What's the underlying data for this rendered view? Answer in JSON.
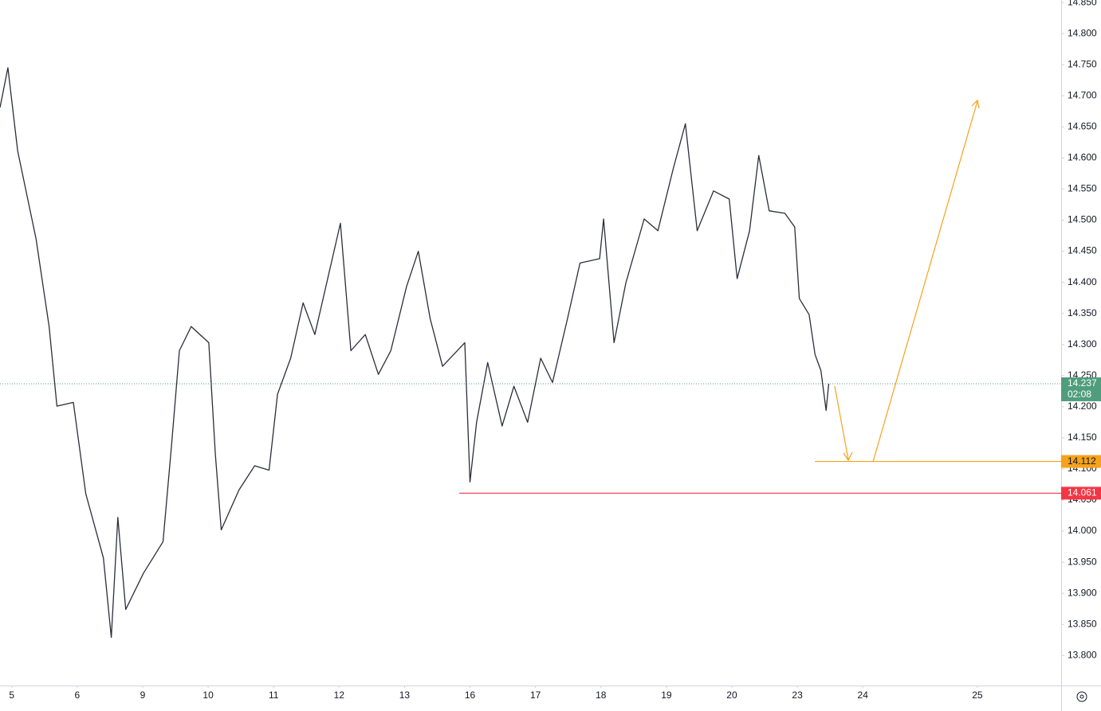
{
  "chart_data": {
    "type": "line",
    "x": [
      -0.18,
      -0.06,
      0.09,
      0.37,
      0.57,
      0.69,
      0.94,
      1.13,
      1.4,
      1.52,
      1.62,
      1.74,
      2.01,
      2.31,
      2.44,
      2.56,
      2.74,
      3.01,
      3.11,
      3.2,
      3.47,
      3.71,
      3.93,
      4.06,
      4.26,
      4.45,
      4.63,
      5.02,
      5.18,
      5.4,
      5.6,
      5.79,
      6.03,
      6.21,
      6.39,
      6.58,
      6.92,
      7.0,
      7.1,
      7.27,
      7.49,
      7.67,
      7.88,
      8.08,
      8.26,
      8.49,
      8.68,
      8.98,
      9.04,
      9.2,
      9.38,
      9.66,
      9.87,
      10.11,
      10.29,
      10.47,
      10.72,
      10.96,
      11.08,
      11.27,
      11.41,
      11.57,
      11.81,
      11.96,
      12.03,
      12.18,
      12.27,
      12.36,
      12.44,
      12.48
    ],
    "values": [
      14.681,
      14.745,
      14.611,
      14.47,
      14.329,
      14.201,
      14.207,
      14.06,
      13.957,
      13.829,
      14.022,
      13.874,
      13.932,
      13.983,
      14.137,
      14.29,
      14.329,
      14.303,
      14.124,
      14.002,
      14.066,
      14.105,
      14.098,
      14.22,
      14.278,
      14.367,
      14.316,
      14.495,
      14.29,
      14.316,
      14.252,
      14.29,
      14.393,
      14.45,
      14.342,
      14.265,
      14.303,
      14.079,
      14.175,
      14.271,
      14.169,
      14.233,
      14.175,
      14.278,
      14.239,
      14.342,
      14.431,
      14.438,
      14.502,
      14.303,
      14.399,
      14.502,
      14.483,
      14.585,
      14.655,
      14.483,
      14.547,
      14.534,
      14.406,
      14.483,
      14.604,
      14.515,
      14.511,
      14.489,
      14.374,
      14.348,
      14.284,
      14.258,
      14.194,
      14.237
    ],
    "color": "#2a2e39",
    "xlim": [
      -0.18,
      16.03
    ],
    "xticks": [
      {
        "value": 0,
        "label": "5"
      },
      {
        "value": 1,
        "label": "6"
      },
      {
        "value": 2,
        "label": "9"
      },
      {
        "value": 3,
        "label": "10"
      },
      {
        "value": 4,
        "label": "11"
      },
      {
        "value": 5,
        "label": "12"
      },
      {
        "value": 6,
        "label": "13"
      },
      {
        "value": 7,
        "label": "16"
      },
      {
        "value": 8,
        "label": "17"
      },
      {
        "value": 9,
        "label": "18"
      },
      {
        "value": 10,
        "label": "19"
      },
      {
        "value": 11,
        "label": "20"
      },
      {
        "value": 12,
        "label": "23"
      },
      {
        "value": 13,
        "label": "24"
      },
      {
        "value": 14.75,
        "label": "25"
      }
    ],
    "ylim": [
      13.753,
      14.854
    ],
    "yticks": [
      {
        "value": 13.8,
        "label": "13.800"
      },
      {
        "value": 13.85,
        "label": "13.850"
      },
      {
        "value": 13.9,
        "label": "13.900"
      },
      {
        "value": 13.95,
        "label": "13.950"
      },
      {
        "value": 14,
        "label": "14.000"
      },
      {
        "value": 14.05,
        "label": "14.050"
      },
      {
        "value": 14.1,
        "label": "14.100"
      },
      {
        "value": 14.15,
        "label": "14.150"
      },
      {
        "value": 14.2,
        "label": "14.200"
      },
      {
        "value": 14.25,
        "label": "14.250"
      },
      {
        "value": 14.3,
        "label": "14.300"
      },
      {
        "value": 14.35,
        "label": "14.350"
      },
      {
        "value": 14.4,
        "label": "14.400"
      },
      {
        "value": 14.45,
        "label": "14.450"
      },
      {
        "value": 14.5,
        "label": "14.500"
      },
      {
        "value": 14.55,
        "label": "14.550"
      },
      {
        "value": 14.6,
        "label": "14.600"
      },
      {
        "value": 14.65,
        "label": "14.650"
      },
      {
        "value": 14.7,
        "label": "14.700"
      },
      {
        "value": 14.75,
        "label": "14.750"
      },
      {
        "value": 14.8,
        "label": "14.800"
      },
      {
        "value": 14.85,
        "label": "14.850"
      }
    ],
    "grid": false,
    "last_price": {
      "value": 14.237,
      "countdown": "02:08",
      "color": "#4f9d7c"
    },
    "levels": [
      {
        "value": 14.112,
        "color": "#f7a21b",
        "label_color": "#131722"
      },
      {
        "value": 14.061,
        "color": "#f23645",
        "label_color": "#ffffff"
      }
    ]
  }
}
